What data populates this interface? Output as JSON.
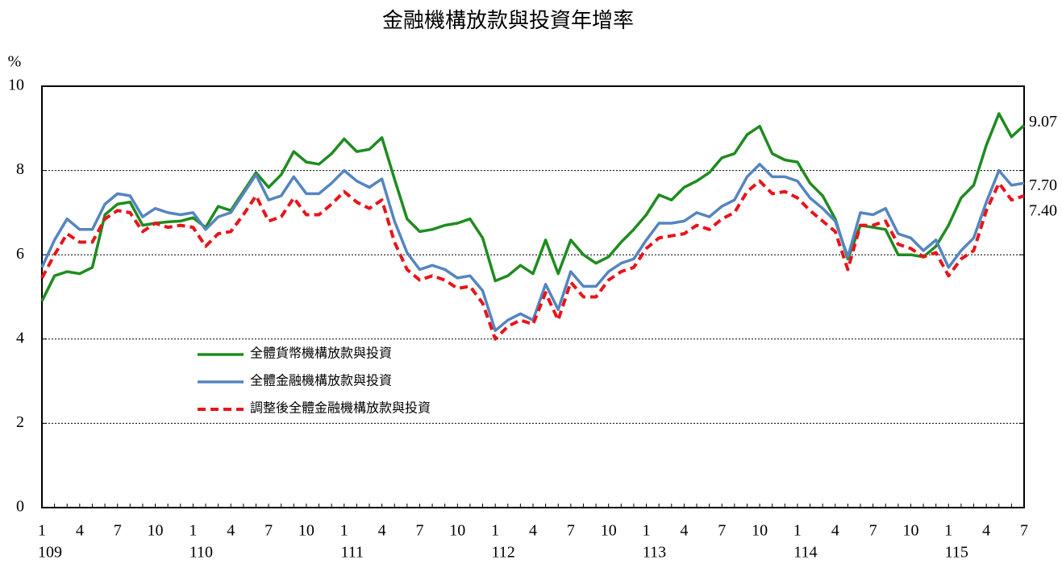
{
  "chart_data": {
    "type": "line",
    "title": "金融機構放款與投資年增率",
    "y_label": "%",
    "categories": [
      "1",
      null,
      null,
      "4",
      null,
      null,
      "7",
      null,
      null,
      "10",
      null,
      null,
      "1",
      null,
      null,
      "4",
      null,
      null,
      "7",
      null,
      null,
      "10",
      null,
      null,
      "1",
      null,
      null,
      "4",
      null,
      null,
      "7",
      null,
      null,
      "10",
      null,
      null,
      "1",
      null,
      null,
      "4",
      null,
      null,
      "7",
      null,
      null,
      "10",
      null,
      null,
      "1",
      null,
      null,
      "4",
      null,
      null,
      "7",
      null,
      null,
      "10",
      null,
      null,
      "1",
      null,
      null,
      "4",
      null,
      null,
      "7",
      null,
      null,
      "10",
      null,
      null,
      "1",
      null,
      null,
      "4",
      null,
      null,
      "7"
    ],
    "category_groups": [
      "109",
      "110",
      "111",
      "112",
      "113",
      "114",
      "115"
    ],
    "ylim": [
      0,
      10
    ],
    "yticks": [
      0,
      2,
      4,
      6,
      8,
      10
    ],
    "grid": true,
    "series": [
      {
        "name": "全體貨幣機構放款與投資",
        "color": "#1e8c1e",
        "dash": false,
        "end_label": "9.07",
        "values": [
          4.9,
          5.5,
          5.6,
          5.55,
          5.7,
          6.95,
          7.2,
          7.25,
          6.7,
          6.75,
          6.78,
          6.8,
          6.88,
          6.65,
          7.15,
          7.05,
          7.5,
          7.95,
          7.6,
          7.9,
          8.45,
          8.2,
          8.15,
          8.4,
          8.75,
          8.45,
          8.5,
          8.78,
          7.8,
          6.85,
          6.55,
          6.6,
          6.7,
          6.75,
          6.85,
          6.4,
          5.38,
          5.5,
          5.75,
          5.55,
          6.35,
          5.55,
          6.35,
          6.0,
          5.8,
          5.95,
          6.3,
          6.6,
          6.95,
          7.42,
          7.3,
          7.6,
          7.75,
          7.95,
          8.3,
          8.4,
          8.85,
          9.05,
          8.4,
          8.25,
          8.2,
          7.7,
          7.4,
          6.85,
          5.9,
          6.7,
          6.65,
          6.6,
          6.0,
          6.0,
          5.95,
          6.2,
          6.7,
          7.35,
          7.65,
          8.6,
          9.35,
          8.8,
          9.07
        ]
      },
      {
        "name": "全體金融機構放款與投資",
        "color": "#5585c0",
        "dash": false,
        "end_label": "7.70",
        "values": [
          5.7,
          6.35,
          6.85,
          6.6,
          6.6,
          7.2,
          7.45,
          7.4,
          6.9,
          7.1,
          7.0,
          6.95,
          7.0,
          6.6,
          6.9,
          7.0,
          7.45,
          7.9,
          7.3,
          7.4,
          7.85,
          7.45,
          7.45,
          7.7,
          8.0,
          7.75,
          7.6,
          7.8,
          6.8,
          6.05,
          5.65,
          5.75,
          5.65,
          5.45,
          5.5,
          5.15,
          4.2,
          4.45,
          4.6,
          4.45,
          5.3,
          4.7,
          5.6,
          5.25,
          5.25,
          5.6,
          5.8,
          5.9,
          6.35,
          6.75,
          6.75,
          6.8,
          7.0,
          6.9,
          7.15,
          7.3,
          7.85,
          8.15,
          7.85,
          7.85,
          7.75,
          7.35,
          7.1,
          6.8,
          5.95,
          7.0,
          6.95,
          7.1,
          6.5,
          6.4,
          6.1,
          6.35,
          5.7,
          6.1,
          6.4,
          7.25,
          8.0,
          7.65,
          7.7
        ]
      },
      {
        "name": "調整後全體金融機構放款與投資",
        "color": "#e8141a",
        "dash": true,
        "end_label": "7.40",
        "values": [
          5.45,
          6.0,
          6.5,
          6.3,
          6.3,
          6.85,
          7.05,
          7.0,
          6.55,
          6.75,
          6.65,
          6.7,
          6.65,
          6.2,
          6.5,
          6.55,
          6.95,
          7.4,
          6.8,
          6.9,
          7.35,
          6.95,
          6.95,
          7.2,
          7.5,
          7.25,
          7.1,
          7.3,
          6.3,
          5.65,
          5.4,
          5.5,
          5.4,
          5.2,
          5.25,
          4.85,
          4.0,
          4.3,
          4.45,
          4.35,
          5.1,
          4.45,
          5.35,
          5.0,
          5.0,
          5.4,
          5.6,
          5.7,
          6.15,
          6.4,
          6.45,
          6.5,
          6.7,
          6.6,
          6.85,
          7.0,
          7.5,
          7.75,
          7.45,
          7.5,
          7.35,
          7.05,
          6.8,
          6.55,
          5.65,
          6.7,
          6.7,
          6.8,
          6.25,
          6.15,
          5.95,
          6.05,
          5.5,
          5.9,
          6.1,
          7.05,
          7.7,
          7.3,
          7.4
        ]
      }
    ]
  }
}
